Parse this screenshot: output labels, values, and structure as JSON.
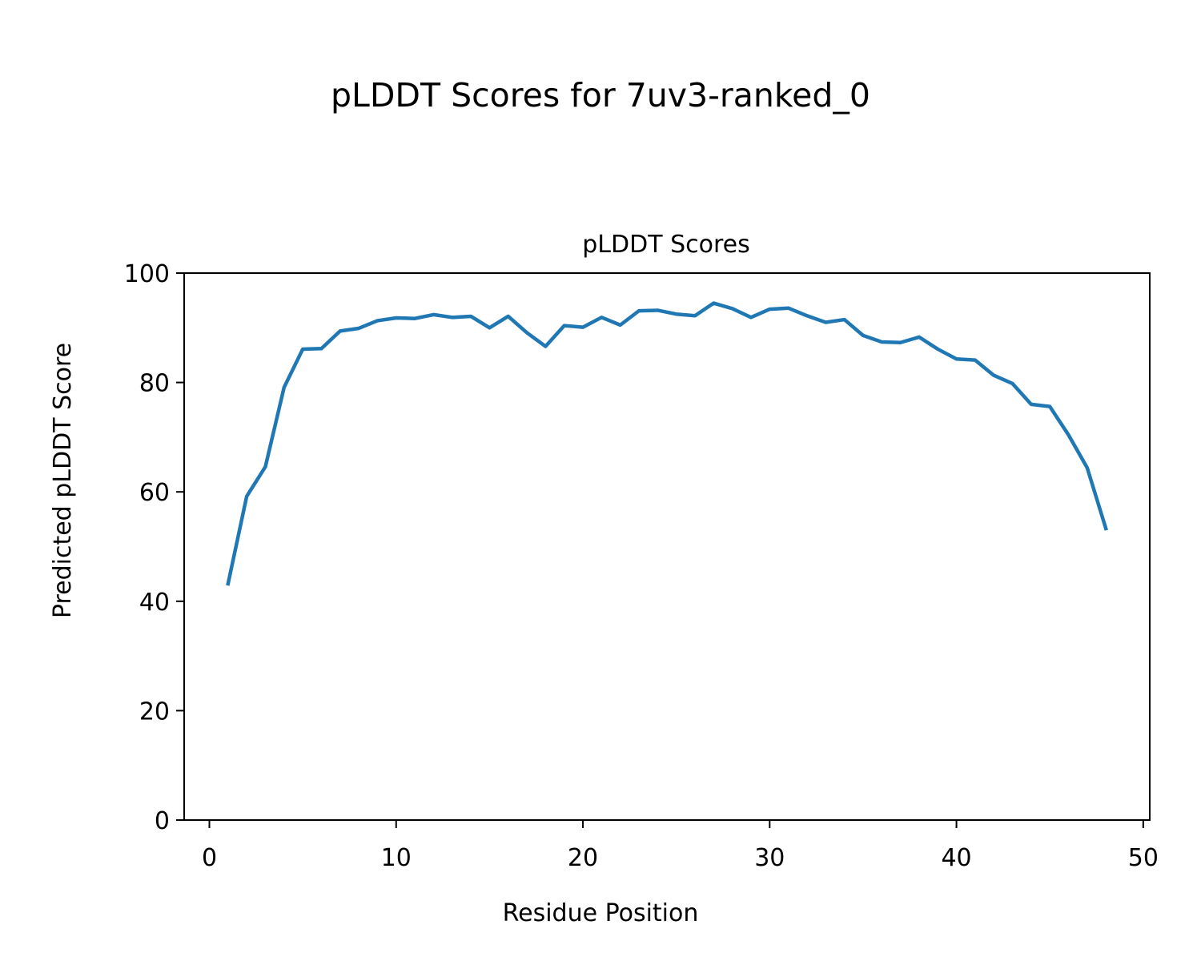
{
  "chart_data": {
    "type": "line",
    "suptitle": "pLDDT Scores for 7uv3-ranked_0",
    "title": "pLDDT Scores",
    "xlabel": "Residue Position",
    "ylabel": "Predicted pLDDT Score",
    "xlim": [
      -1.35,
      50.35
    ],
    "ylim": [
      0,
      100
    ],
    "xticks": [
      0,
      10,
      20,
      30,
      40,
      50
    ],
    "yticks": [
      0,
      20,
      40,
      60,
      80,
      100
    ],
    "xtick_labels": [
      "0",
      "10",
      "20",
      "30",
      "40",
      "50"
    ],
    "ytick_labels": [
      "0",
      "20",
      "40",
      "60",
      "80",
      "100"
    ],
    "grid": false,
    "series": [
      {
        "color": "#1f77b4",
        "x": [
          1,
          2,
          3,
          4,
          5,
          6,
          7,
          8,
          9,
          10,
          11,
          12,
          13,
          14,
          15,
          16,
          17,
          18,
          19,
          20,
          21,
          22,
          23,
          24,
          25,
          26,
          27,
          28,
          29,
          30,
          31,
          32,
          33,
          34,
          35,
          36,
          37,
          38,
          39,
          40,
          41,
          42,
          43,
          44,
          45,
          46,
          47,
          48
        ],
        "values": [
          43.2,
          59.2,
          64.6,
          79.1,
          86.1,
          86.2,
          89.4,
          89.9,
          91.3,
          91.8,
          91.7,
          92.4,
          91.9,
          92.1,
          90.0,
          92.1,
          89.1,
          86.6,
          90.4,
          90.1,
          91.9,
          90.5,
          93.1,
          93.2,
          92.5,
          92.2,
          94.5,
          93.5,
          91.9,
          93.4,
          93.6,
          92.2,
          91.0,
          91.5,
          88.6,
          87.4,
          87.3,
          88.3,
          86.1,
          84.3,
          84.1,
          81.3,
          79.8,
          76.0,
          75.6,
          70.4,
          64.4,
          53.3
        ]
      }
    ]
  }
}
